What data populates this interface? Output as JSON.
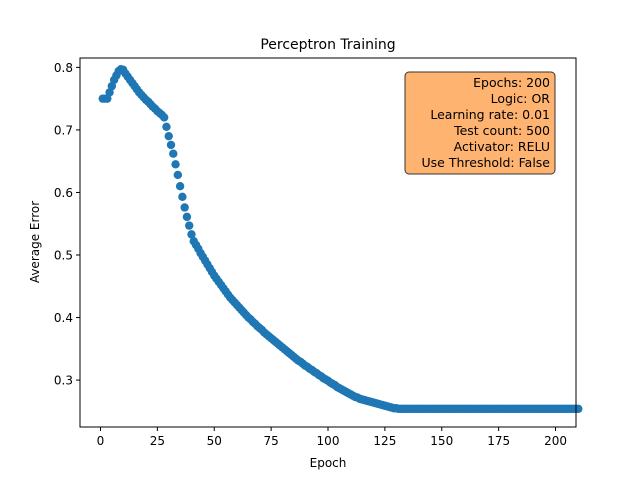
{
  "chart_data": {
    "type": "scatter",
    "title": "Perceptron Training",
    "xlabel": "Epoch",
    "ylabel": "Average Error",
    "xlim": [
      -9,
      209
    ],
    "ylim": [
      0.225,
      0.815
    ],
    "xticks": [
      0,
      25,
      50,
      75,
      100,
      125,
      150,
      175,
      200
    ],
    "yticks": [
      0.3,
      0.4,
      0.5,
      0.6,
      0.7,
      0.8
    ],
    "ytick_labels": [
      "0.3",
      "0.4",
      "0.5",
      "0.6",
      "0.7",
      "0.8"
    ],
    "grid": false,
    "marker_color": "#1f77b4",
    "series": [
      {
        "x_start": 1,
        "x_step": 1,
        "values": [
          0.75,
          0.75,
          0.75,
          0.76,
          0.77,
          0.78,
          0.787,
          0.794,
          0.797,
          0.796,
          0.79,
          0.785,
          0.78,
          0.775,
          0.77,
          0.765,
          0.76,
          0.756,
          0.752,
          0.748,
          0.745,
          0.741,
          0.737,
          0.734,
          0.73,
          0.727,
          0.724,
          0.72,
          0.705,
          0.69,
          0.676,
          0.662,
          0.645,
          0.628,
          0.61,
          0.593,
          0.576,
          0.561,
          0.547,
          0.533,
          0.522,
          0.516,
          0.51,
          0.503,
          0.497,
          0.491,
          0.485,
          0.479,
          0.473,
          0.467,
          0.462,
          0.457,
          0.452,
          0.447,
          0.442,
          0.437,
          0.432,
          0.428,
          0.424,
          0.42,
          0.416,
          0.412,
          0.408,
          0.404,
          0.4,
          0.397,
          0.393,
          0.39,
          0.386,
          0.383,
          0.38,
          0.376,
          0.373,
          0.37,
          0.367,
          0.364,
          0.361,
          0.358,
          0.355,
          0.352,
          0.349,
          0.346,
          0.343,
          0.34,
          0.337,
          0.334,
          0.331,
          0.329,
          0.326,
          0.323,
          0.321,
          0.318,
          0.316,
          0.313,
          0.311,
          0.308,
          0.306,
          0.303,
          0.301,
          0.299,
          0.296,
          0.294,
          0.292,
          0.289,
          0.287,
          0.285,
          0.283,
          0.281,
          0.279,
          0.277,
          0.275,
          0.273,
          0.272,
          0.27,
          0.269,
          0.268,
          0.267,
          0.266,
          0.265,
          0.264,
          0.263,
          0.262,
          0.261,
          0.26,
          0.259,
          0.258,
          0.257,
          0.256,
          0.255,
          0.255,
          0.254,
          0.254,
          0.254,
          0.254,
          0.254,
          0.254,
          0.254,
          0.254,
          0.254,
          0.254,
          0.254,
          0.254,
          0.254,
          0.254,
          0.254,
          0.254,
          0.254,
          0.254,
          0.254,
          0.254,
          0.254,
          0.254,
          0.254,
          0.254,
          0.254,
          0.254,
          0.254,
          0.254,
          0.254,
          0.254,
          0.254,
          0.254,
          0.254,
          0.254,
          0.254,
          0.254,
          0.254,
          0.254,
          0.254,
          0.254,
          0.254,
          0.254,
          0.254,
          0.254,
          0.254,
          0.254,
          0.254,
          0.254,
          0.254,
          0.254,
          0.254,
          0.254,
          0.254,
          0.254,
          0.254,
          0.254,
          0.254,
          0.254,
          0.254,
          0.254,
          0.254,
          0.254,
          0.254,
          0.254,
          0.254,
          0.254,
          0.254,
          0.254,
          0.254,
          0.254,
          0.254,
          0.254,
          0.254,
          0.254,
          0.254,
          0.254,
          0.254,
          0.254,
          0.254,
          0.254
        ]
      }
    ],
    "annotation": {
      "placement": "top-right",
      "box_color": "#ffb370",
      "lines": [
        "Epochs: 200",
        "Logic: OR",
        "Learning rate: 0.01",
        "Test count: 500",
        "Activator: RELU",
        "Use Threshold: False"
      ]
    }
  }
}
